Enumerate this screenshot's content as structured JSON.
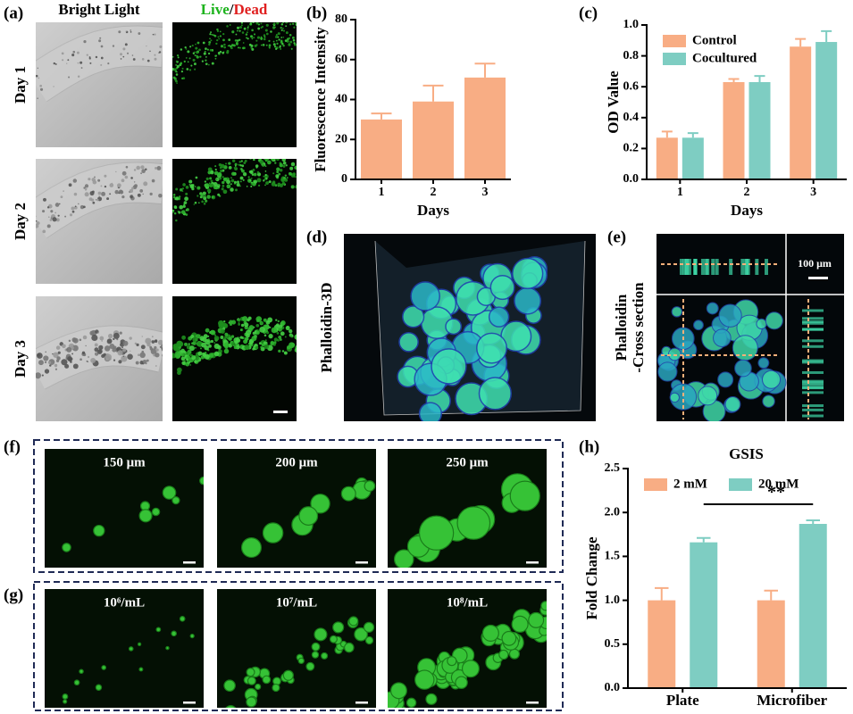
{
  "panels": {
    "a": {
      "label": "(a)",
      "col_bright": "Bright Light",
      "col_live": "Live",
      "col_sep": "/",
      "col_dead": "Dead",
      "rows": [
        "Day 1",
        "Day 2",
        "Day 3"
      ]
    },
    "d": {
      "label": "(d)",
      "side": "Phalloidin-3D"
    },
    "e": {
      "label": "(e)",
      "side_1": "Phalloidin",
      "side_2": "-Cross section",
      "scale": "100 μm"
    },
    "f": {
      "label": "(f)",
      "images": [
        "150 μm",
        "200 μm",
        "250 μm"
      ]
    },
    "g": {
      "label": "(g)",
      "images": [
        "10⁶/mL",
        "10⁷/mL",
        "10⁸/mL"
      ]
    }
  },
  "chart_data": [
    {
      "type": "bar",
      "panel_label": "(b)",
      "xlabel": "Days",
      "ylabel": "Fluorescence Intensity",
      "categories": [
        "1",
        "2",
        "3"
      ],
      "values": [
        30,
        39,
        51
      ],
      "errors": [
        3,
        8,
        7
      ],
      "color": "#f8ad84",
      "ylim": [
        0,
        80
      ],
      "yticks": [
        0,
        20,
        40,
        60,
        80
      ]
    },
    {
      "type": "bar",
      "panel_label": "(c)",
      "xlabel": "Days",
      "ylabel": "OD Value",
      "legend": "upper left",
      "categories": [
        "1",
        "2",
        "3"
      ],
      "series": [
        {
          "name": "Control",
          "color": "#f8ad84",
          "values": [
            0.27,
            0.63,
            0.86
          ],
          "errors": [
            0.04,
            0.02,
            0.05
          ]
        },
        {
          "name": "Cocultured",
          "color": "#7ecdc2",
          "values": [
            0.27,
            0.63,
            0.89
          ],
          "errors": [
            0.03,
            0.04,
            0.07
          ]
        }
      ],
      "ylim": [
        0,
        1
      ],
      "yticks": [
        {
          "value": 0,
          "label": "0.0"
        },
        {
          "value": 0.2,
          "label": "0.2"
        },
        {
          "value": 0.4,
          "label": "0.4"
        },
        {
          "value": 0.6,
          "label": "0.6"
        },
        {
          "value": 0.8,
          "label": "0.8"
        },
        {
          "value": 1,
          "label": "1.0"
        }
      ]
    },
    {
      "type": "bar",
      "panel_label": "(h)",
      "title": "GSIS",
      "ylabel": "Fold Change",
      "legend": "upper left",
      "annotation": "**",
      "categories": [
        "Plate",
        "Microfiber"
      ],
      "series": [
        {
          "name": "2 mM",
          "color": "#f8ad84",
          "values": [
            1.0,
            1.0
          ],
          "errors": [
            0.14,
            0.11
          ]
        },
        {
          "name": "20 mM",
          "color": "#7ecdc2",
          "values": [
            1.66,
            1.87
          ],
          "errors": [
            0.05,
            0.04
          ]
        }
      ],
      "ylim": [
        0,
        2.5
      ],
      "yticks": [
        {
          "value": 0,
          "label": "0.0"
        },
        {
          "value": 0.5,
          "label": "0.5"
        },
        {
          "value": 1,
          "label": "1.0"
        },
        {
          "value": 1.5,
          "label": "1.5"
        },
        {
          "value": 2,
          "label": "2.0"
        },
        {
          "value": 2.5,
          "label": "2.5"
        }
      ]
    }
  ]
}
